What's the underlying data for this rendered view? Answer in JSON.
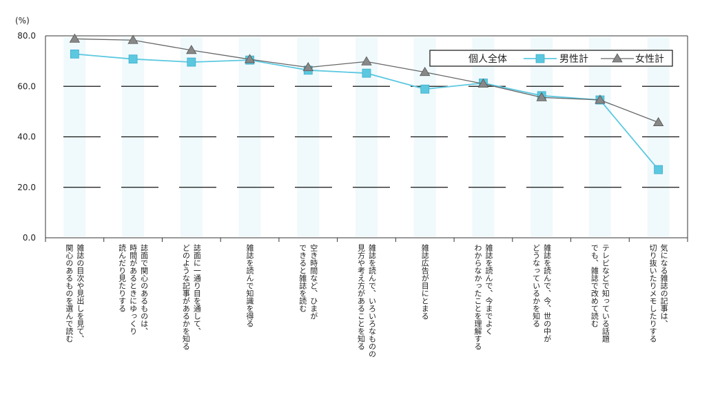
{
  "chart_data": {
    "type": "line",
    "yunit": "(%)",
    "ylim": [
      0,
      80
    ],
    "yticks": [
      "80.0",
      "60.0",
      "40.0",
      "20.0",
      "0.0"
    ],
    "grid": true,
    "legend_position": "top-right",
    "categories": [
      [
        "雑誌の目次や見出しを見て、",
        "関心のあるものを選んで読む"
      ],
      [
        "誌面で関心のあるものは、",
        "時間があるときにゆっくり",
        "読んだり見たりする"
      ],
      [
        "誌面に一通り目を通して、",
        "どのような記事があるかを知る"
      ],
      [
        "雑誌を読んで知識を得る"
      ],
      [
        "空き時間など、ひまが",
        "できると雑誌を読む"
      ],
      [
        "雑誌を読んで、いろいろなものの",
        "見方や考え方があることを知る"
      ],
      [
        "雑誌広告が目にとまる"
      ],
      [
        "雑誌を読んで、今までよく",
        "わからなかったことを理解する"
      ],
      [
        "雑誌を読んで、今、世の中が",
        "どうなっているかを知る"
      ],
      [
        "テレビなどで知っている話題",
        "でも、雑誌で改めて読む"
      ],
      [
        "気になる雑誌の記事は、",
        "切り抜いたりメモしたりする"
      ]
    ],
    "legend_title": "個人全体",
    "series": [
      {
        "name": "男性計",
        "color": "#5bc8e0",
        "marker": "square",
        "values": [
          72.8,
          70.8,
          69.6,
          70.4,
          66.4,
          65.2,
          58.9,
          61.3,
          56.3,
          54.6,
          27.0
        ]
      },
      {
        "name": "女性計",
        "color": "#666666",
        "marker": "triangle",
        "values": [
          78.8,
          78.3,
          74.3,
          70.7,
          67.5,
          69.8,
          65.6,
          61.0,
          55.6,
          54.6,
          45.7
        ]
      }
    ]
  }
}
